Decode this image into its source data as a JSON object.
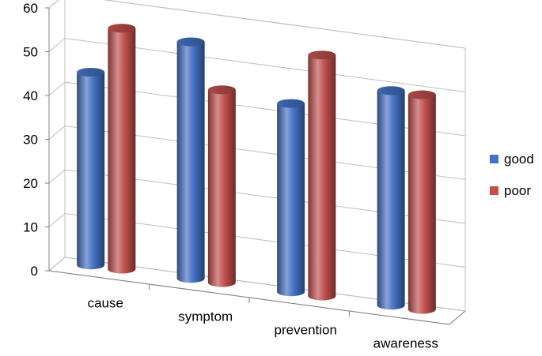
{
  "chart_data": {
    "type": "bar",
    "categories": [
      "cause",
      "symptom",
      "prevention",
      "awareness"
    ],
    "series": [
      {
        "name": "good",
        "values": [
          44,
          54,
          43,
          49
        ],
        "color": "#4472C4"
      },
      {
        "name": "poor",
        "values": [
          55,
          44,
          55,
          49
        ],
        "color": "#C0504D"
      }
    ],
    "y_ticks": [
      "0",
      "10",
      "20",
      "30",
      "40",
      "50",
      "60"
    ],
    "ylim": [
      0,
      60
    ],
    "grid": true,
    "legend": "right",
    "three_d": true,
    "title": "",
    "xlabel": "",
    "ylabel": ""
  }
}
